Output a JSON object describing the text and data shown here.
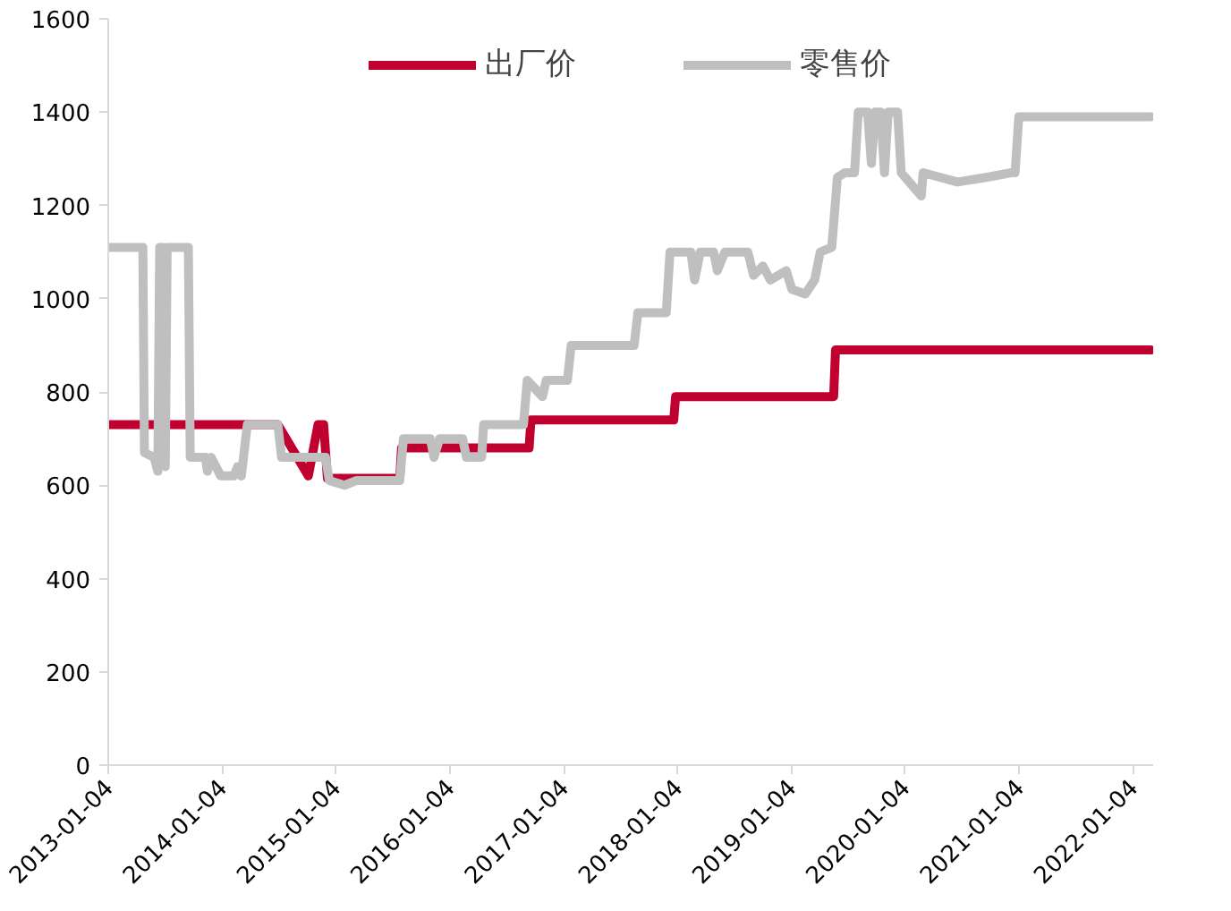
{
  "chart_data": {
    "type": "line",
    "legend": "top",
    "grid": false,
    "line_style": "solid",
    "marker": "none",
    "xlim": [
      "2013-01-04",
      "2022-03-10"
    ],
    "xticks": [
      "2013-01-04",
      "2014-01-04",
      "2015-01-04",
      "2016-01-04",
      "2017-01-04",
      "2018-01-04",
      "2019-01-04",
      "2020-01-04",
      "2021-01-04",
      "2022-01-04"
    ],
    "ylim": [
      0,
      1600
    ],
    "yticks": [
      0,
      200,
      400,
      600,
      800,
      1000,
      1200,
      1400,
      1600
    ],
    "series": [
      {
        "name": "出厂价",
        "color": "#c0002f",
        "x": [
          "2013-01-04",
          "2014-07-02",
          "2014-10-08",
          "2014-11-08",
          "2014-11-26",
          "2014-12-08",
          "2015-07-28",
          "2015-08-03",
          "2016-09-15",
          "2016-09-21",
          "2017-12-23",
          "2017-12-29",
          "2019-05-20",
          "2019-05-26",
          "2022-03-03"
        ],
        "values": [
          730,
          730,
          620,
          730,
          730,
          615,
          615,
          680,
          680,
          740,
          740,
          790,
          790,
          890,
          890
        ]
      },
      {
        "name": "零售价",
        "color": "#bfbfbf",
        "x": [
          "2013-01-04",
          "2013-04-25",
          "2013-04-30",
          "2013-05-31",
          "2013-06-12",
          "2013-06-18",
          "2013-06-30",
          "2013-07-06",
          "2013-07-12",
          "2013-09-18",
          "2013-09-24",
          "2013-11-12",
          "2013-11-18",
          "2013-11-30",
          "2013-12-31",
          "2014-02-11",
          "2014-02-23",
          "2014-03-07",
          "2014-03-26",
          "2014-07-02",
          "2014-07-14",
          "2014-12-02",
          "2014-12-14",
          "2015-02-01",
          "2015-03-10",
          "2015-07-28",
          "2015-08-09",
          "2015-11-03",
          "2015-11-15",
          "2015-12-03",
          "2016-02-15",
          "2016-02-27",
          "2016-04-16",
          "2016-04-22",
          "2016-08-28",
          "2016-09-09",
          "2016-10-28",
          "2016-11-09",
          "2017-01-16",
          "2017-01-28",
          "2017-08-18",
          "2017-08-30",
          "2017-11-29",
          "2017-12-11",
          "2018-02-16",
          "2018-02-28",
          "2018-03-18",
          "2018-04-30",
          "2018-05-12",
          "2018-06-05",
          "2018-08-18",
          "2018-09-05",
          "2018-10-05",
          "2018-10-29",
          "2018-12-19",
          "2019-01-06",
          "2019-02-18",
          "2019-03-20",
          "2019-04-07",
          "2019-05-14",
          "2019-06-01",
          "2019-06-25",
          "2019-07-26",
          "2019-08-07",
          "2019-09-06",
          "2019-09-18",
          "2019-09-30",
          "2019-10-18",
          "2019-10-30",
          "2019-11-11",
          "2019-12-11",
          "2019-12-23",
          "2020-02-25",
          "2020-03-02",
          "2020-06-20",
          "2020-09-20",
          "2020-12-10",
          "2020-12-22",
          "2021-01-03",
          "2022-03-03"
        ],
        "values": [
          1110,
          1110,
          670,
          660,
          630,
          1110,
          1110,
          640,
          1110,
          1110,
          660,
          660,
          630,
          660,
          620,
          620,
          640,
          620,
          730,
          730,
          660,
          660,
          610,
          600,
          610,
          610,
          700,
          700,
          660,
          700,
          700,
          660,
          660,
          730,
          730,
          825,
          790,
          825,
          825,
          900,
          900,
          970,
          970,
          1100,
          1100,
          1040,
          1100,
          1100,
          1060,
          1100,
          1100,
          1050,
          1070,
          1040,
          1060,
          1020,
          1010,
          1040,
          1100,
          1110,
          1260,
          1270,
          1270,
          1400,
          1400,
          1290,
          1400,
          1400,
          1270,
          1400,
          1400,
          1270,
          1220,
          1270,
          1250,
          1260,
          1270,
          1270,
          1390,
          1390
        ]
      }
    ]
  }
}
